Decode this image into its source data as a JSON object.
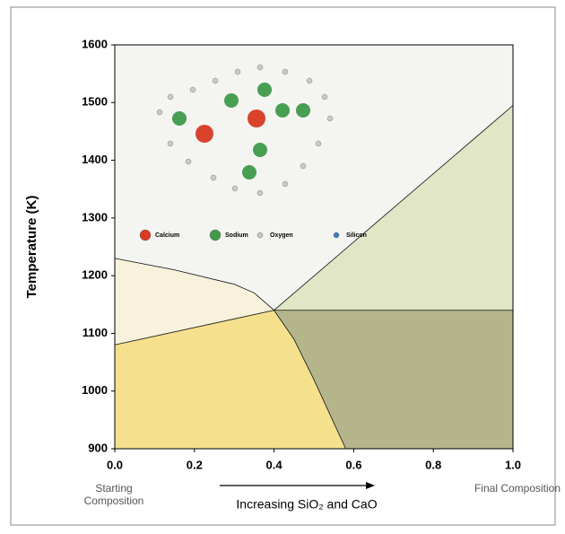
{
  "chart_data": {
    "type": "phase-diagram",
    "y_label": "Temperature (K)",
    "x_label": "Increasing SiO₂ and CaO",
    "start_label": "Starting Composition",
    "end_label": "Final Composition",
    "xlim": [
      0,
      1
    ],
    "ylim": [
      900,
      1600
    ],
    "xticks": [
      {
        "value": 0,
        "label": "0.0"
      },
      0.2,
      0.4,
      0.6,
      0.8,
      {
        "value": 1,
        "label": "1.0"
      }
    ],
    "yticks": [
      900,
      1000,
      1100,
      1200,
      1300,
      1400,
      1500,
      1600
    ],
    "legend": [
      {
        "name": "Calcium",
        "color": "#d83a22"
      },
      {
        "name": "Sodium",
        "color": "#3f9a4a"
      },
      {
        "name": "Oxygen",
        "color": "#c8c8c8"
      },
      {
        "name": "Silicon",
        "color": "#3a7fc0"
      }
    ],
    "regions": [
      {
        "color": "#f4f4f1",
        "points": [
          [
            0,
            1600
          ],
          [
            1,
            1600
          ],
          [
            1,
            1495
          ],
          [
            0.4,
            1140
          ],
          [
            0.35,
            1170
          ],
          [
            0.3,
            1185
          ],
          [
            0.15,
            1210
          ],
          [
            0,
            1230
          ]
        ]
      },
      {
        "color": "#f8f1dc",
        "points": [
          [
            0,
            1230
          ],
          [
            0.15,
            1210
          ],
          [
            0.3,
            1185
          ],
          [
            0.35,
            1170
          ],
          [
            0.4,
            1140
          ],
          [
            0,
            1080
          ]
        ]
      },
      {
        "color": "#f5e08e",
        "points": [
          [
            0,
            1080
          ],
          [
            0.4,
            1140
          ],
          [
            0.45,
            1090
          ],
          [
            0.5,
            1020
          ],
          [
            0.58,
            900
          ],
          [
            0,
            900
          ]
        ]
      },
      {
        "color": "#e0e6c6",
        "points": [
          [
            0.4,
            1140
          ],
          [
            1,
            1495
          ],
          [
            1,
            1140
          ]
        ]
      },
      {
        "color": "#b5b58c",
        "points": [
          [
            0.4,
            1140
          ],
          [
            1,
            1140
          ],
          [
            1,
            900
          ],
          [
            0.58,
            900
          ],
          [
            0.5,
            1020
          ],
          [
            0.45,
            1090
          ]
        ]
      }
    ]
  }
}
